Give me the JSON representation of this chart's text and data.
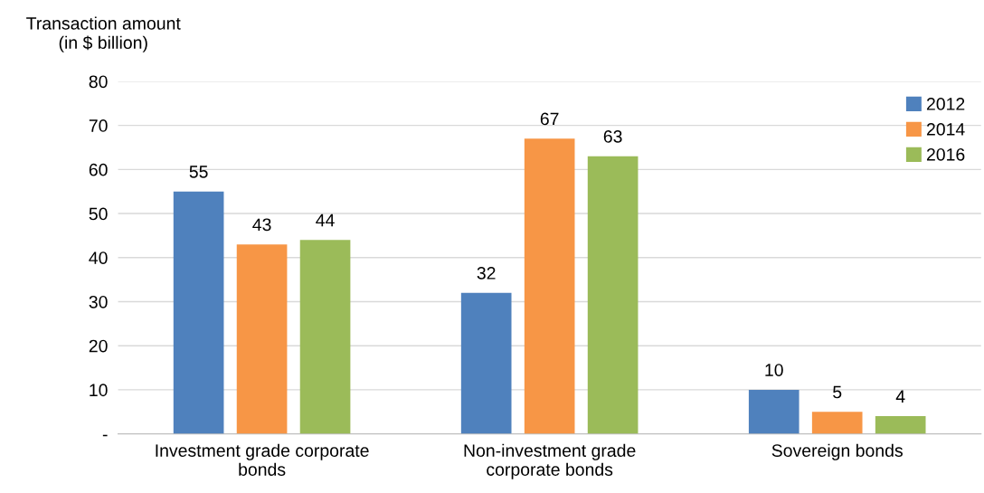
{
  "chart_data": {
    "type": "bar",
    "ylabel": "Transaction amount\n(in $ billion)",
    "categories": [
      "Investment grade corporate\nbonds",
      "Non-investment grade\ncorporate bonds",
      "Sovereign bonds"
    ],
    "series": [
      {
        "name": "2012",
        "color": "#4f81bd",
        "values": [
          55,
          32,
          10
        ]
      },
      {
        "name": "2014",
        "color": "#f79646",
        "values": [
          43,
          67,
          5
        ]
      },
      {
        "name": "2016",
        "color": "#9bbb59",
        "values": [
          44,
          63,
          4
        ]
      }
    ],
    "ylim": [
      0,
      80
    ],
    "yticks": [
      {
        "value": 0,
        "label": "-"
      },
      10,
      20,
      30,
      40,
      50,
      60,
      70,
      80
    ],
    "grid": "y",
    "legend": "top right",
    "data_labels": true
  }
}
